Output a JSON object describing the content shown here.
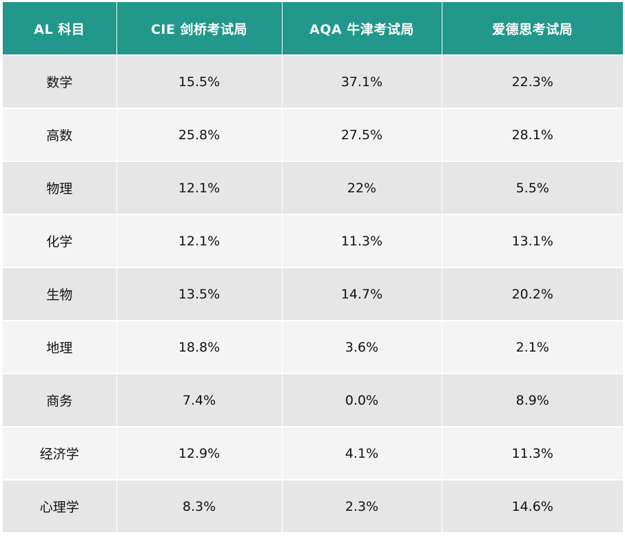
{
  "table": {
    "headers": [
      "AL 科目",
      "CIE 剑桥考试局",
      "AQA 牛津考试局",
      "爱德思考试局"
    ],
    "rows": [
      [
        "数学",
        "15.5%",
        "37.1%",
        "22.3%"
      ],
      [
        "高数",
        "25.8%",
        "27.5%",
        "28.1%"
      ],
      [
        "物理",
        "12.1%",
        "22%",
        "5.5%"
      ],
      [
        "化学",
        "12.1%",
        "11.3%",
        "13.1%"
      ],
      [
        "生物",
        "13.5%",
        "14.7%",
        "20.2%"
      ],
      [
        "地理",
        "18.8%",
        "3.6%",
        "2.1%"
      ],
      [
        "商务",
        "7.4%",
        "0.0%",
        "8.9%"
      ],
      [
        "经济学",
        "12.9%",
        "4.1%",
        "11.3%"
      ],
      [
        "心理学",
        "8.3%",
        "2.3%",
        "14.6%"
      ]
    ]
  },
  "colors": {
    "header_bg": "#22978c",
    "row_odd": "#e6e6e6",
    "row_even": "#f4f4f4"
  }
}
